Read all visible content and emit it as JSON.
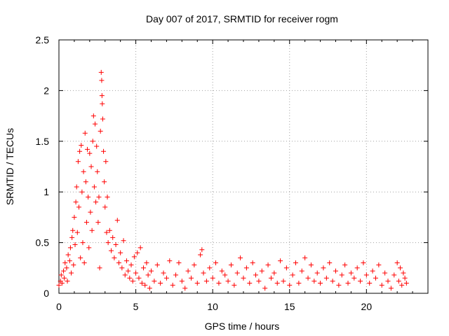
{
  "chart_data": {
    "type": "scatter",
    "title": "Day 007 of 2017, SRMTID for receiver rogm",
    "xlabel": "GPS time / hours",
    "ylabel": "SRMTID / TECUs",
    "xlim": [
      0,
      24
    ],
    "ylim": [
      0,
      2.5
    ],
    "x_ticks": [
      0,
      5,
      10,
      15,
      20
    ],
    "y_ticks": [
      0,
      0.5,
      1,
      1.5,
      2,
      2.5
    ],
    "x_tick_labels": [
      "0",
      "5",
      "10",
      "15",
      "20"
    ],
    "y_tick_labels": [
      "0",
      "0.5",
      "1",
      "1.5",
      "2",
      "2.5"
    ],
    "grid": true,
    "marker": "+",
    "color": "#ff0000",
    "series": [
      {
        "name": "SRMTID",
        "points": [
          [
            0.0,
            0.08
          ],
          [
            0.1,
            0.12
          ],
          [
            0.15,
            0.18
          ],
          [
            0.2,
            0.1
          ],
          [
            0.3,
            0.22
          ],
          [
            0.35,
            0.15
          ],
          [
            0.4,
            0.3
          ],
          [
            0.5,
            0.25
          ],
          [
            0.55,
            0.12
          ],
          [
            0.6,
            0.38
          ],
          [
            0.7,
            0.32
          ],
          [
            0.75,
            0.45
          ],
          [
            0.8,
            0.2
          ],
          [
            0.85,
            0.55
          ],
          [
            0.9,
            0.62
          ],
          [
            0.95,
            0.28
          ],
          [
            1.0,
            0.75
          ],
          [
            1.05,
            0.48
          ],
          [
            1.1,
            0.9
          ],
          [
            1.15,
            1.05
          ],
          [
            1.2,
            0.6
          ],
          [
            1.25,
            1.3
          ],
          [
            1.3,
            0.85
          ],
          [
            1.35,
            1.4
          ],
          [
            1.4,
            0.35
          ],
          [
            1.45,
            1.46
          ],
          [
            1.5,
            1.0
          ],
          [
            1.55,
            0.5
          ],
          [
            1.6,
            1.2
          ],
          [
            1.65,
            0.3
          ],
          [
            1.7,
            1.58
          ],
          [
            1.75,
            1.1
          ],
          [
            1.8,
            0.7
          ],
          [
            1.85,
            1.42
          ],
          [
            1.9,
            0.95
          ],
          [
            1.95,
            0.45
          ],
          [
            2.0,
            1.38
          ],
          [
            2.05,
            0.8
          ],
          [
            2.1,
            1.25
          ],
          [
            2.15,
            0.62
          ],
          [
            2.2,
            1.5
          ],
          [
            2.25,
            1.75
          ],
          [
            2.3,
            1.05
          ],
          [
            2.35,
            1.67
          ],
          [
            2.4,
            0.9
          ],
          [
            2.45,
            1.45
          ],
          [
            2.5,
            1.2
          ],
          [
            2.55,
            0.7
          ],
          [
            2.6,
            0.95
          ],
          [
            2.65,
            0.25
          ],
          [
            2.7,
            1.6
          ],
          [
            2.75,
            2.18
          ],
          [
            2.78,
            2.1
          ],
          [
            2.8,
            1.95
          ],
          [
            2.82,
            1.87
          ],
          [
            2.85,
            1.72
          ],
          [
            2.9,
            1.4
          ],
          [
            2.95,
            1.1
          ],
          [
            3.0,
            0.85
          ],
          [
            3.05,
            1.3
          ],
          [
            3.1,
            0.6
          ],
          [
            3.15,
            0.95
          ],
          [
            3.2,
            0.5
          ],
          [
            3.3,
            0.62
          ],
          [
            3.4,
            0.42
          ],
          [
            3.5,
            0.55
          ],
          [
            3.6,
            0.35
          ],
          [
            3.7,
            0.48
          ],
          [
            3.8,
            0.72
          ],
          [
            3.9,
            0.3
          ],
          [
            4.0,
            0.4
          ],
          [
            4.1,
            0.25
          ],
          [
            4.2,
            0.52
          ],
          [
            4.3,
            0.18
          ],
          [
            4.4,
            0.32
          ],
          [
            4.5,
            0.22
          ],
          [
            4.6,
            0.15
          ],
          [
            4.7,
            0.28
          ],
          [
            4.8,
            0.12
          ],
          [
            4.9,
            0.36
          ],
          [
            5.0,
            0.2
          ],
          [
            5.1,
            0.4
          ],
          [
            5.2,
            0.15
          ],
          [
            5.3,
            0.45
          ],
          [
            5.4,
            0.1
          ],
          [
            5.5,
            0.25
          ],
          [
            5.6,
            0.08
          ],
          [
            5.7,
            0.3
          ],
          [
            5.8,
            0.18
          ],
          [
            5.9,
            0.05
          ],
          [
            6.0,
            0.22
          ],
          [
            6.2,
            0.12
          ],
          [
            6.4,
            0.28
          ],
          [
            6.6,
            0.1
          ],
          [
            6.8,
            0.2
          ],
          [
            7.0,
            0.15
          ],
          [
            7.2,
            0.32
          ],
          [
            7.4,
            0.08
          ],
          [
            7.6,
            0.18
          ],
          [
            7.8,
            0.3
          ],
          [
            8.0,
            0.12
          ],
          [
            8.2,
            0.05
          ],
          [
            8.4,
            0.22
          ],
          [
            8.6,
            0.15
          ],
          [
            8.8,
            0.28
          ],
          [
            9.0,
            0.1
          ],
          [
            9.2,
            0.38
          ],
          [
            9.3,
            0.43
          ],
          [
            9.4,
            0.2
          ],
          [
            9.6,
            0.12
          ],
          [
            9.8,
            0.25
          ],
          [
            10.0,
            0.15
          ],
          [
            10.2,
            0.3
          ],
          [
            10.4,
            0.1
          ],
          [
            10.6,
            0.22
          ],
          [
            10.8,
            0.18
          ],
          [
            11.0,
            0.12
          ],
          [
            11.2,
            0.28
          ],
          [
            11.4,
            0.08
          ],
          [
            11.6,
            0.2
          ],
          [
            11.8,
            0.35
          ],
          [
            12.0,
            0.15
          ],
          [
            12.2,
            0.25
          ],
          [
            12.4,
            0.1
          ],
          [
            12.6,
            0.3
          ],
          [
            12.8,
            0.18
          ],
          [
            13.0,
            0.12
          ],
          [
            13.2,
            0.22
          ],
          [
            13.4,
            0.05
          ],
          [
            13.6,
            0.28
          ],
          [
            13.8,
            0.15
          ],
          [
            14.0,
            0.2
          ],
          [
            14.2,
            0.1
          ],
          [
            14.4,
            0.32
          ],
          [
            14.6,
            0.12
          ],
          [
            14.8,
            0.25
          ],
          [
            15.0,
            0.08
          ],
          [
            15.2,
            0.18
          ],
          [
            15.4,
            0.3
          ],
          [
            15.6,
            0.1
          ],
          [
            15.8,
            0.22
          ],
          [
            16.0,
            0.35
          ],
          [
            16.2,
            0.15
          ],
          [
            16.4,
            0.28
          ],
          [
            16.6,
            0.12
          ],
          [
            16.8,
            0.2
          ],
          [
            17.0,
            0.1
          ],
          [
            17.2,
            0.25
          ],
          [
            17.4,
            0.15
          ],
          [
            17.6,
            0.3
          ],
          [
            17.8,
            0.12
          ],
          [
            18.0,
            0.22
          ],
          [
            18.2,
            0.08
          ],
          [
            18.4,
            0.18
          ],
          [
            18.6,
            0.28
          ],
          [
            18.8,
            0.1
          ],
          [
            19.0,
            0.2
          ],
          [
            19.2,
            0.15
          ],
          [
            19.4,
            0.25
          ],
          [
            19.6,
            0.12
          ],
          [
            19.8,
            0.3
          ],
          [
            20.0,
            0.18
          ],
          [
            20.2,
            0.1
          ],
          [
            20.4,
            0.22
          ],
          [
            20.6,
            0.15
          ],
          [
            20.8,
            0.28
          ],
          [
            21.0,
            0.08
          ],
          [
            21.2,
            0.2
          ],
          [
            21.4,
            0.12
          ],
          [
            21.6,
            0.05
          ],
          [
            21.8,
            0.18
          ],
          [
            22.0,
            0.3
          ],
          [
            22.1,
            0.12
          ],
          [
            22.2,
            0.25
          ],
          [
            22.3,
            0.08
          ],
          [
            22.4,
            0.2
          ],
          [
            22.5,
            0.15
          ],
          [
            22.6,
            0.1
          ]
        ]
      }
    ]
  }
}
